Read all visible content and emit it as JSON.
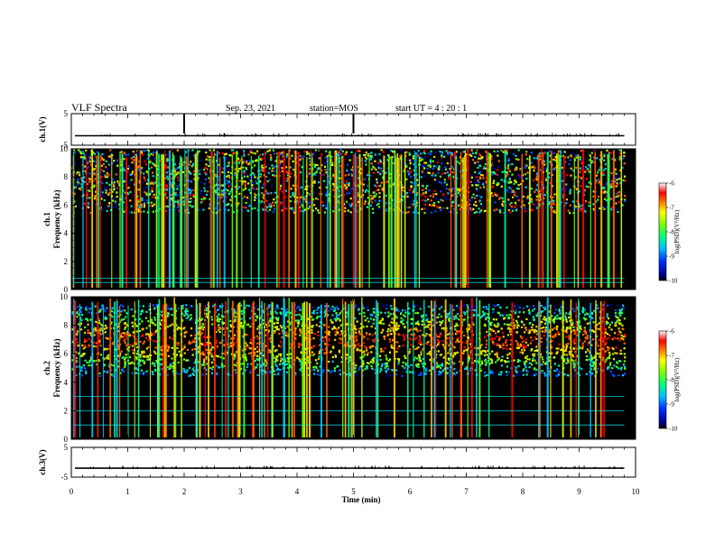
{
  "header": {
    "title": "VLF Spectra",
    "date": "Sep. 23, 2021",
    "station": "station=MOS",
    "start": "start  UT =   4 : 20 : 1"
  },
  "chart_data": [
    {
      "type": "line",
      "panel": "ch1-waveform",
      "ylabel": "ch.1(V)",
      "ylim": [
        -5,
        5
      ],
      "ytick_labels": [
        "5",
        "-5"
      ],
      "x_range_min": [
        0,
        9.8
      ],
      "baseline_value": -2
    },
    {
      "type": "heatmap",
      "panel": "ch1-spectrogram",
      "ylabel": "ch.1\nFrequency (kHz)",
      "ylim": [
        0,
        10
      ],
      "ytick_labels": [
        "0",
        "2",
        "4",
        "6",
        "8",
        "10"
      ],
      "x_range_min": [
        0,
        9.8
      ],
      "colorbar": {
        "label": "log(PSD)(V²/Hz)",
        "range": [
          -10,
          -6
        ],
        "tick_labels": [
          "-6",
          "-7",
          "-8",
          "-9",
          "-10"
        ]
      },
      "main_band_khz": [
        5.5,
        10
      ],
      "horizontal_lines_khz": [
        0.5,
        0.8
      ]
    },
    {
      "type": "heatmap",
      "panel": "ch2-spectrogram",
      "ylabel": "ch.2\nFrequency (kHz)",
      "ylim": [
        0,
        10
      ],
      "ytick_labels": [
        "0",
        "2",
        "4",
        "6",
        "8",
        "10"
      ],
      "x_range_min": [
        0,
        9.8
      ],
      "colorbar": {
        "label": "log(PSD)(V²/Hz)",
        "range": [
          -10,
          -6
        ],
        "tick_labels": [
          "-6",
          "-7",
          "-8",
          "-9",
          "-10"
        ]
      },
      "main_band_khz": [
        4.5,
        9.5
      ],
      "peak_khz": 7,
      "horizontal_lines_khz": [
        1.0,
        2.0,
        3.0
      ]
    },
    {
      "type": "line",
      "panel": "ch3-waveform",
      "ylabel": "ch.3(V)",
      "ylim": [
        -5,
        5
      ],
      "ytick_labels": [
        "5",
        "-5"
      ],
      "x_range_min": [
        0,
        9.8
      ],
      "baseline_value": -2
    }
  ],
  "x_axis": {
    "label": "Time  (min)",
    "range": [
      0,
      10
    ],
    "tick_labels": [
      "0",
      "1",
      "2",
      "3",
      "4",
      "5",
      "6",
      "7",
      "8",
      "9",
      "10"
    ]
  },
  "colors": {
    "background": "#000000",
    "axes": "#000000"
  }
}
